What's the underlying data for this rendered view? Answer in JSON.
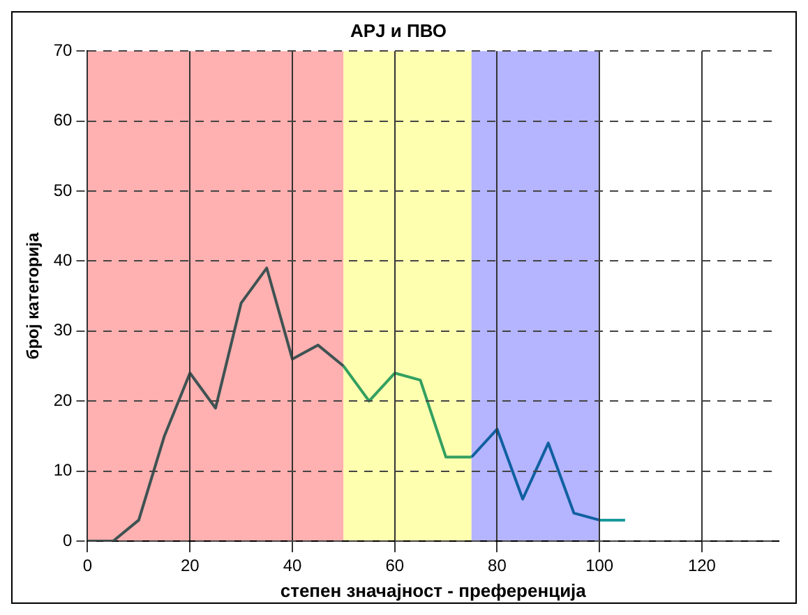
{
  "chart_data": {
    "type": "line",
    "title": "APJ и ПВО",
    "xlabel": "степен значајност - преференција",
    "ylabel": "број категорија",
    "xlim": [
      0,
      135
    ],
    "xticks": [
      0,
      20,
      40,
      60,
      80,
      100,
      120
    ],
    "ylim": [
      0,
      70
    ],
    "yticks": [
      0,
      10,
      20,
      30,
      40,
      50,
      60,
      70
    ],
    "grid": true,
    "marker": "none",
    "legend": false,
    "bands": [
      {
        "axis": "x",
        "from": 0,
        "to": 50,
        "color": "#ffb0b0"
      },
      {
        "axis": "x",
        "from": 50,
        "to": 75,
        "color": "#ffffb0"
      },
      {
        "axis": "x",
        "from": 75,
        "to": 100,
        "color": "#b4b4ff"
      }
    ],
    "series": [
      {
        "color": "#3f5252",
        "x": [
          0,
          5,
          10,
          15,
          20,
          25,
          30,
          35,
          40,
          45,
          50
        ],
        "values": [
          0,
          0,
          3,
          15,
          24,
          19,
          34,
          39,
          26,
          28,
          25
        ]
      },
      {
        "color": "#33a060",
        "x": [
          50,
          55,
          60,
          65,
          70,
          75
        ],
        "values": [
          25,
          20,
          24,
          23,
          12,
          12
        ]
      },
      {
        "color": "#1060a0",
        "x": [
          75,
          80,
          85,
          90,
          95,
          100
        ],
        "values": [
          12,
          16,
          6,
          14,
          4,
          3
        ]
      },
      {
        "color": "#1a9a9a",
        "x": [
          100,
          105
        ],
        "values": [
          3,
          3
        ]
      }
    ]
  }
}
